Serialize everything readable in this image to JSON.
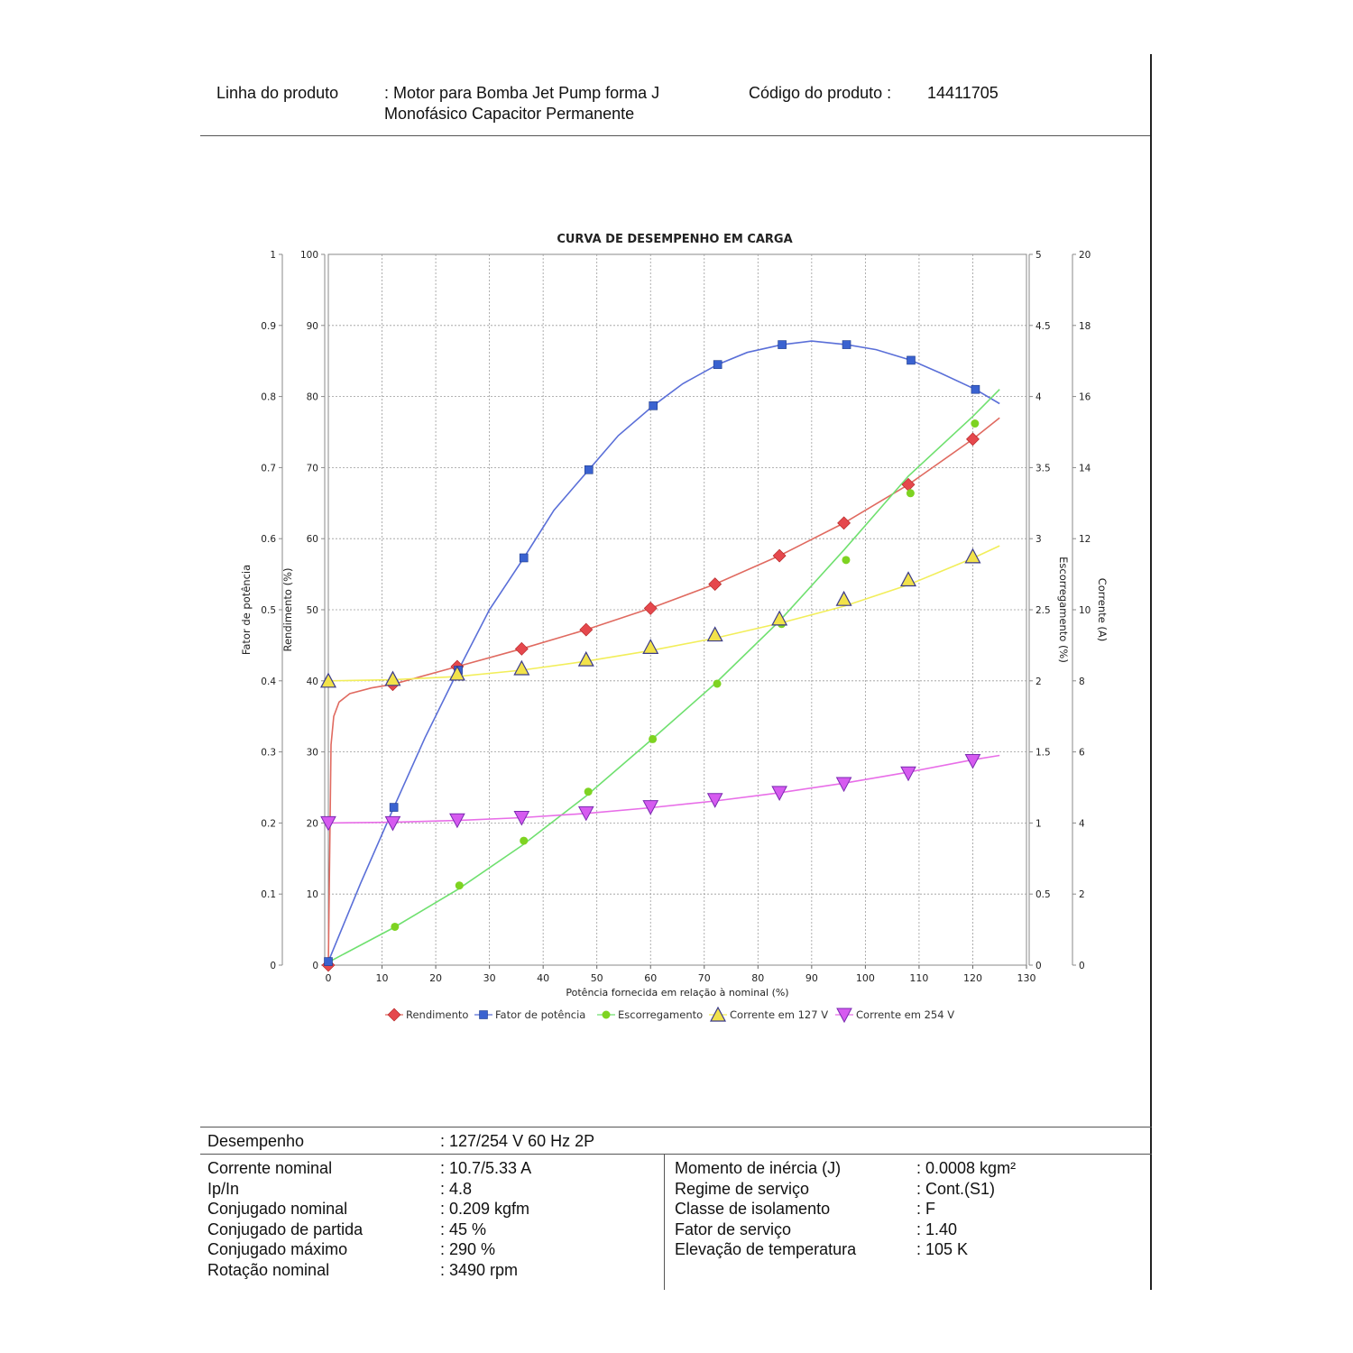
{
  "header": {
    "product_line_label": "Linha do produto",
    "product_line_value_1": ": Motor para Bomba Jet Pump forma J",
    "product_line_value_2": "Monofásico Capacitor Permanente",
    "product_code_label": "Código do produto :",
    "product_code_value": "14411705"
  },
  "specs": {
    "performance_label": "Desempenho",
    "performance_value": ": 127/254 V 60 Hz 2P",
    "left": [
      {
        "label": "Corrente nominal",
        "value": ": 10.7/5.33 A"
      },
      {
        "label": "Ip/In",
        "value": ": 4.8"
      },
      {
        "label": "Conjugado nominal",
        "value": ": 0.209 kgfm"
      },
      {
        "label": "Conjugado de partida",
        "value": ": 45 %"
      },
      {
        "label": "Conjugado máximo",
        "value": ": 290 %"
      },
      {
        "label": "Rotação nominal",
        "value": ": 3490 rpm"
      }
    ],
    "right": [
      {
        "label": "Momento de inércia (J)",
        "value": ": 0.0008 kgm²"
      },
      {
        "label": "Regime de serviço",
        "value": ": Cont.(S1)"
      },
      {
        "label": "Classe de isolamento",
        "value": ": F"
      },
      {
        "label": "Fator de serviço",
        "value": ": 1.40"
      },
      {
        "label": "Elevação de temperatura",
        "value": ": 105 K"
      }
    ]
  },
  "chart_data": {
    "type": "line",
    "title": "CURVA DE DESEMPENHO EM CARGA",
    "xlabel": "Potência fornecida em relação à nominal (%)",
    "xlim": [
      0,
      130
    ],
    "xticks": [
      "0",
      "10",
      "20",
      "30",
      "40",
      "50",
      "60",
      "70",
      "80",
      "90",
      "100",
      "110",
      "120",
      "130"
    ],
    "grid": true,
    "legend_position": "bottom",
    "axes": [
      {
        "id": "fp",
        "label": "Fator de potência",
        "side": "left-outer",
        "lim": [
          0,
          1
        ],
        "ticks": [
          "0",
          "0.1",
          "0.2",
          "0.3",
          "0.4",
          "0.5",
          "0.6",
          "0.7",
          "0.8",
          "0.9",
          "1"
        ]
      },
      {
        "id": "rend",
        "label": "Rendimento (%)",
        "side": "left-inner",
        "lim": [
          0,
          100
        ],
        "ticks": [
          "0",
          "10",
          "20",
          "30",
          "40",
          "50",
          "60",
          "70",
          "80",
          "90",
          "100"
        ]
      },
      {
        "id": "esc",
        "label": "Escorregamento (%)",
        "side": "right-inner",
        "lim": [
          0,
          5
        ],
        "ticks": [
          "0",
          "0.5",
          "1",
          "1.5",
          "2",
          "2.5",
          "3",
          "3.5",
          "4",
          "4.5",
          "5"
        ]
      },
      {
        "id": "cor",
        "label": "Corrente (A)",
        "side": "right-outer",
        "lim": [
          0,
          20
        ],
        "ticks": [
          "0",
          "2",
          "4",
          "6",
          "8",
          "10",
          "12",
          "14",
          "16",
          "18",
          "20"
        ]
      }
    ],
    "series": [
      {
        "name": "Rendimento",
        "axis": "rend",
        "color": "#e5484d",
        "line_color": "#e06a60",
        "marker": "diamond",
        "points": [
          [
            0,
            0
          ],
          [
            12,
            39.5
          ],
          [
            24,
            42
          ],
          [
            36,
            44.5
          ],
          [
            48,
            47.2
          ],
          [
            60,
            50.2
          ],
          [
            72,
            53.6
          ],
          [
            84,
            57.6
          ],
          [
            96,
            62.2
          ],
          [
            108,
            67.6
          ],
          [
            120,
            74
          ]
        ],
        "curve": [
          [
            0,
            0
          ],
          [
            0.5,
            31
          ],
          [
            1,
            35
          ],
          [
            2,
            37
          ],
          [
            4,
            38.2
          ],
          [
            8,
            39
          ],
          [
            12,
            39.5
          ],
          [
            24,
            42
          ],
          [
            36,
            44.5
          ],
          [
            48,
            47.2
          ],
          [
            60,
            50.2
          ],
          [
            72,
            53.6
          ],
          [
            84,
            57.6
          ],
          [
            96,
            62.2
          ],
          [
            108,
            67.6
          ],
          [
            120,
            74
          ],
          [
            125,
            77
          ]
        ]
      },
      {
        "name": "Fator de potência",
        "axis": "fp",
        "color": "#3a62d0",
        "line_color": "#5a6fd8",
        "marker": "square",
        "points": [
          [
            0,
            0.005
          ],
          [
            12.2,
            0.222
          ],
          [
            24.2,
            0.415
          ],
          [
            36.4,
            0.573
          ],
          [
            48.5,
            0.697
          ],
          [
            60.5,
            0.787
          ],
          [
            72.5,
            0.845
          ],
          [
            84.5,
            0.873
          ],
          [
            96.5,
            0.873
          ],
          [
            108.5,
            0.851
          ],
          [
            120.5,
            0.81
          ]
        ],
        "curve": [
          [
            0,
            0.005
          ],
          [
            6,
            0.115
          ],
          [
            12.2,
            0.222
          ],
          [
            18,
            0.32
          ],
          [
            24.2,
            0.415
          ],
          [
            30,
            0.5
          ],
          [
            36.4,
            0.573
          ],
          [
            42,
            0.64
          ],
          [
            48.5,
            0.697
          ],
          [
            54,
            0.745
          ],
          [
            60.5,
            0.787
          ],
          [
            66,
            0.818
          ],
          [
            72.5,
            0.845
          ],
          [
            78,
            0.862
          ],
          [
            84.5,
            0.873
          ],
          [
            90,
            0.878
          ],
          [
            96.5,
            0.873
          ],
          [
            102,
            0.866
          ],
          [
            108.5,
            0.851
          ],
          [
            114,
            0.833
          ],
          [
            120.5,
            0.81
          ],
          [
            125,
            0.79
          ]
        ]
      },
      {
        "name": "Escorregamento",
        "axis": "esc",
        "color": "#7ed321",
        "line_color": "#6fe06f",
        "marker": "circle",
        "points": [
          [
            12.4,
            0.27
          ],
          [
            24.4,
            0.56
          ],
          [
            36.4,
            0.875
          ],
          [
            48.4,
            1.22
          ],
          [
            60.4,
            1.59
          ],
          [
            72.4,
            1.98
          ],
          [
            84.4,
            2.4
          ],
          [
            96.4,
            2.85
          ],
          [
            108.4,
            3.32
          ],
          [
            120.4,
            3.81
          ]
        ],
        "curve": [
          [
            0,
            0.02
          ],
          [
            12,
            0.26
          ],
          [
            24,
            0.53
          ],
          [
            36,
            0.84
          ],
          [
            48,
            1.19
          ],
          [
            60,
            1.58
          ],
          [
            72,
            1.98
          ],
          [
            84,
            2.42
          ],
          [
            96,
            2.92
          ],
          [
            108,
            3.44
          ],
          [
            120,
            3.86
          ],
          [
            125,
            4.05
          ]
        ]
      },
      {
        "name": "Corrente em 127 V",
        "axis": "cor",
        "color": "#f2e24a",
        "line_color": "#f2ee5a",
        "marker": "triangle-up",
        "points": [
          [
            0,
            8
          ],
          [
            12,
            8.05
          ],
          [
            24,
            8.2
          ],
          [
            36,
            8.35
          ],
          [
            48,
            8.6
          ],
          [
            60,
            8.95
          ],
          [
            72,
            9.3
          ],
          [
            84,
            9.75
          ],
          [
            96,
            10.3
          ],
          [
            108,
            10.85
          ],
          [
            120,
            11.5
          ]
        ],
        "curve": [
          [
            0,
            8.0
          ],
          [
            12,
            8.03
          ],
          [
            24,
            8.12
          ],
          [
            36,
            8.3
          ],
          [
            48,
            8.55
          ],
          [
            60,
            8.85
          ],
          [
            72,
            9.2
          ],
          [
            84,
            9.62
          ],
          [
            96,
            10.1
          ],
          [
            108,
            10.7
          ],
          [
            120,
            11.45
          ],
          [
            125,
            11.8
          ]
        ]
      },
      {
        "name": "Corrente em 254 V",
        "axis": "cor",
        "color": "#d65af0",
        "line_color": "#e86ee8",
        "marker": "triangle-down",
        "points": [
          [
            0,
            4
          ],
          [
            12,
            4.0
          ],
          [
            24,
            4.08
          ],
          [
            36,
            4.15
          ],
          [
            48,
            4.28
          ],
          [
            60,
            4.45
          ],
          [
            72,
            4.65
          ],
          [
            84,
            4.85
          ],
          [
            96,
            5.1
          ],
          [
            108,
            5.4
          ],
          [
            120,
            5.75
          ]
        ],
        "curve": [
          [
            0,
            4.0
          ],
          [
            12,
            4.02
          ],
          [
            24,
            4.07
          ],
          [
            36,
            4.15
          ],
          [
            48,
            4.27
          ],
          [
            60,
            4.43
          ],
          [
            72,
            4.62
          ],
          [
            84,
            4.85
          ],
          [
            96,
            5.12
          ],
          [
            108,
            5.43
          ],
          [
            120,
            5.78
          ],
          [
            125,
            5.9
          ]
        ]
      }
    ]
  }
}
